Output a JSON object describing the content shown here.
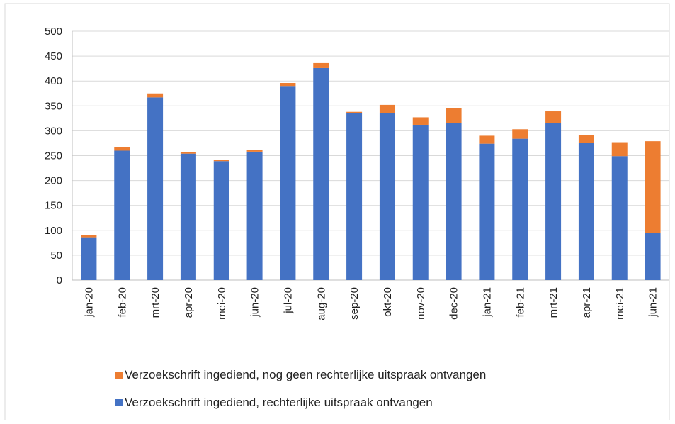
{
  "chart_data": {
    "type": "stacked_bar",
    "categories": [
      "jan-20",
      "feb-20",
      "mrt-20",
      "apr-20",
      "mei-20",
      "jun-20",
      "jul-20",
      "aug-20",
      "sep-20",
      "okt-20",
      "nov-20",
      "dec-20",
      "jan-21",
      "feb-21",
      "mrt-21",
      "apr-21",
      "mei-21",
      "jun-21"
    ],
    "series": [
      {
        "name": "Verzoekschrift ingediend, rechterlijke uitspraak ontvangen",
        "color": "#4472c4",
        "values": [
          86,
          260,
          367,
          254,
          239,
          258,
          390,
          426,
          335,
          335,
          312,
          316,
          274,
          284,
          315,
          276,
          249,
          95
        ]
      },
      {
        "name": "Verzoekschrift ingediend, nog geen rechterlijke uitspraak ontvangen",
        "color": "#ed7d31",
        "values": [
          4,
          7,
          8,
          3,
          3,
          3,
          6,
          10,
          3,
          17,
          15,
          29,
          16,
          19,
          24,
          15,
          28,
          184
        ]
      }
    ],
    "ylim": [
      0,
      500
    ],
    "yticks": [
      0,
      50,
      100,
      150,
      200,
      250,
      300,
      350,
      400,
      450,
      500
    ],
    "grid": true
  }
}
